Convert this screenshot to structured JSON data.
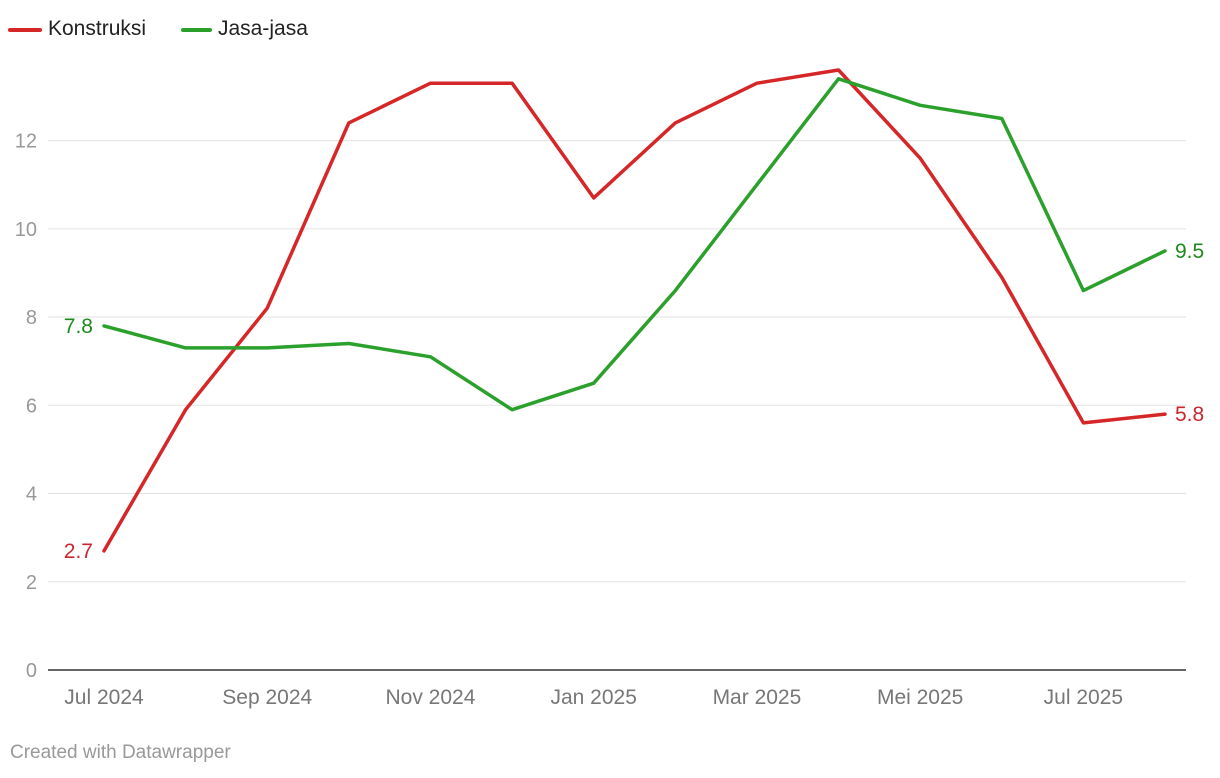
{
  "chart_data": {
    "type": "line",
    "title": "",
    "xlabel": "",
    "ylabel": "",
    "x": [
      "2024-07",
      "2024-08",
      "2024-09",
      "2024-10",
      "2024-11",
      "2024-12",
      "2025-01",
      "2025-02",
      "2025-03",
      "2025-04",
      "2025-05",
      "2025-06",
      "2025-07",
      "2025-08"
    ],
    "x_tick_labels": [
      {
        "x": "2024-07",
        "label": "Jul 2024"
      },
      {
        "x": "2024-09",
        "label": "Sep 2024"
      },
      {
        "x": "2024-11",
        "label": "Nov 2024"
      },
      {
        "x": "2025-01",
        "label": "Jan 2025"
      },
      {
        "x": "2025-03",
        "label": "Mar 2025"
      },
      {
        "x": "2025-05",
        "label": "Mei 2025"
      },
      {
        "x": "2025-07",
        "label": "Jul 2025"
      }
    ],
    "y_ticks": [
      0,
      2,
      4,
      6,
      8,
      10,
      12
    ],
    "y_tick_labels": [
      "0",
      "2",
      "4",
      "6",
      "8",
      "10",
      "12"
    ],
    "ylim": [
      0,
      13.6
    ],
    "grid": true,
    "legend_position": "top-left",
    "series": [
      {
        "name": "Konstruksi",
        "color": "#d62728",
        "label_color": "#c9272d",
        "values": [
          2.7,
          5.9,
          8.2,
          12.4,
          13.3,
          13.3,
          10.7,
          12.4,
          13.3,
          13.6,
          11.6,
          8.9,
          5.6,
          5.8
        ],
        "start_label": "2.7",
        "end_label": "5.8"
      },
      {
        "name": "Jasa-jasa",
        "color": "#2ca02c",
        "label_color": "#1e8a1e",
        "values": [
          7.8,
          7.3,
          7.3,
          7.4,
          7.1,
          5.9,
          6.5,
          8.6,
          11.0,
          13.4,
          12.8,
          12.5,
          8.6,
          9.5
        ],
        "start_label": "7.8",
        "end_label": "9.5"
      }
    ]
  },
  "credit": "Created with Datawrapper"
}
